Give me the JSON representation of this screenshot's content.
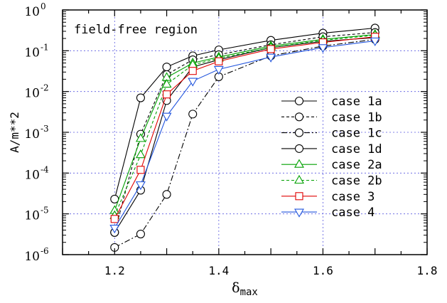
{
  "chart_data": {
    "type": "line",
    "annotation": "field-free region",
    "xlabel_main": "δ",
    "xlabel_sub": "max",
    "ylabel": "A/m**2",
    "x_scale": "linear",
    "y_scale": "log",
    "xlim": [
      1.1,
      1.8
    ],
    "ylim_exponents": [
      -6,
      0
    ],
    "x_ticks": [
      1.2,
      1.4,
      1.6,
      1.8
    ],
    "x_tick_labels": [
      "1.2",
      "1.4",
      "1.6",
      "1.8"
    ],
    "y_ticks": [
      -6,
      -5,
      -4,
      -3,
      -2,
      -1,
      0
    ],
    "y_tick_base": "10",
    "y_tick_exps": [
      "-6",
      "-5",
      "-4",
      "-3",
      "-2",
      "-1",
      "0"
    ],
    "grid": true,
    "legend_position": "right",
    "series": [
      {
        "name": "case 1a",
        "color": "#000000",
        "dash": "",
        "marker": "circle",
        "x": [
          1.2,
          1.25,
          1.3,
          1.35,
          1.4,
          1.5,
          1.6,
          1.7
        ],
        "y": [
          2.3e-05,
          0.007,
          0.04,
          0.075,
          0.105,
          0.18,
          0.27,
          0.36
        ]
      },
      {
        "name": "case 1b",
        "color": "#000000",
        "dash": "4,3",
        "marker": "circle",
        "x": [
          1.2,
          1.25,
          1.3,
          1.35,
          1.4,
          1.5,
          1.6,
          1.7
        ],
        "y": [
          3.5e-06,
          0.0009,
          0.026,
          0.06,
          0.08,
          0.14,
          0.22,
          0.28
        ]
      },
      {
        "name": "case 1c",
        "color": "#000000",
        "dash": "8,3,2,3",
        "marker": "circle",
        "x": [
          1.2,
          1.25,
          1.3,
          1.35,
          1.4,
          1.5,
          1.6,
          1.7
        ],
        "y": [
          1.5e-06,
          3.2e-06,
          3e-05,
          0.0028,
          0.023,
          0.075,
          0.13,
          0.19
        ]
      },
      {
        "name": "case 1d",
        "color": "#000000",
        "dash": "",
        "marker": "circle",
        "x": [
          1.2,
          1.25,
          1.3,
          1.35,
          1.4,
          1.5,
          1.6,
          1.7
        ],
        "y": [
          3.5e-06,
          3.8e-05,
          0.006,
          0.04,
          0.06,
          0.12,
          0.17,
          0.21
        ]
      },
      {
        "name": "case 2a",
        "color": "#00a000",
        "dash": "",
        "marker": "triangle",
        "x": [
          1.2,
          1.25,
          1.3,
          1.35,
          1.4,
          1.5,
          1.6,
          1.7
        ],
        "y": [
          1.2e-05,
          0.0007,
          0.022,
          0.05,
          0.07,
          0.13,
          0.19,
          0.25
        ]
      },
      {
        "name": "case 2b",
        "color": "#00a000",
        "dash": "4,3",
        "marker": "triangle",
        "x": [
          1.2,
          1.25,
          1.3,
          1.35,
          1.4,
          1.5,
          1.6,
          1.7
        ],
        "y": [
          9e-06,
          0.00028,
          0.015,
          0.045,
          0.065,
          0.12,
          0.18,
          0.24
        ]
      },
      {
        "name": "case 3",
        "color": "#e00000",
        "dash": "",
        "marker": "square",
        "x": [
          1.2,
          1.25,
          1.3,
          1.35,
          1.4,
          1.5,
          1.6,
          1.7
        ],
        "y": [
          7.5e-06,
          0.00012,
          0.0085,
          0.032,
          0.055,
          0.11,
          0.16,
          0.22
        ]
      },
      {
        "name": "case 4",
        "color": "#2255dd",
        "dash": "",
        "marker": "triangle-down",
        "x": [
          1.2,
          1.25,
          1.3,
          1.35,
          1.4,
          1.5,
          1.6,
          1.7
        ],
        "y": [
          4.5e-06,
          5.2e-05,
          0.0025,
          0.018,
          0.035,
          0.07,
          0.12,
          0.175
        ]
      }
    ]
  }
}
